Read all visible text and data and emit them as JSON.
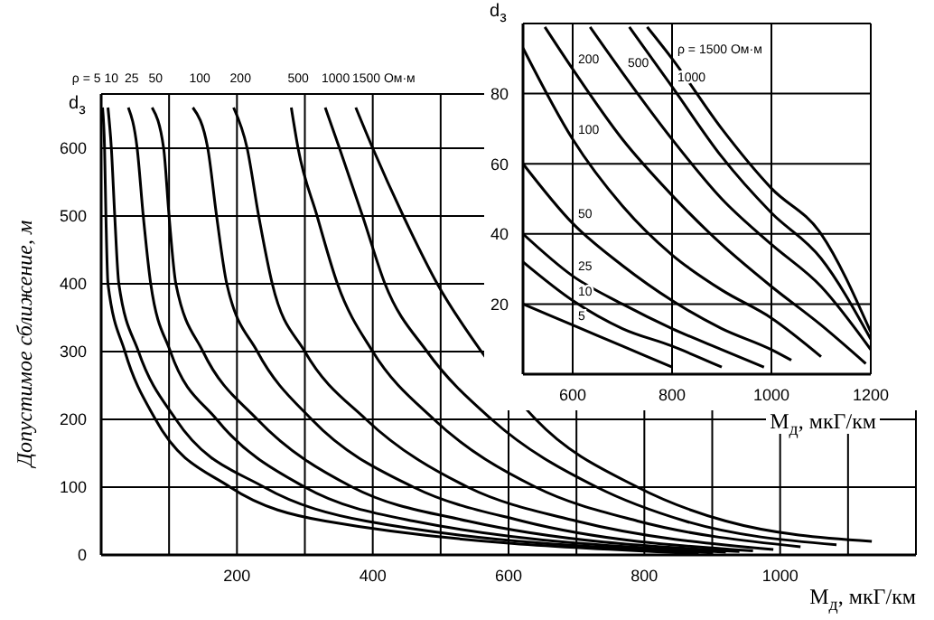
{
  "chart_data": [
    {
      "type": "line",
      "ylabel": "Допустимое сближение, м",
      "xlabel": "M$_{д}$, мкГ/км",
      "annotations": [
        "d$_{з}$"
      ],
      "xlim": [
        0,
        1200
      ],
      "ylim": [
        0,
        680
      ],
      "xticks": [
        {
          "value": 0,
          "label": null
        },
        {
          "value": 100,
          "label": null
        },
        200,
        {
          "value": 300,
          "label": null
        },
        400,
        {
          "value": 500,
          "label": null
        },
        600,
        {
          "value": 700,
          "label": null
        },
        800,
        {
          "value": 900,
          "label": null
        },
        1000,
        {
          "value": 1100,
          "label": null
        }
      ],
      "yticks": [
        0,
        100,
        200,
        300,
        400,
        500,
        600
      ],
      "grid": true,
      "marker": "none",
      "line_style": "solid",
      "series": [
        {
          "name": "ρ = 5",
          "color": "#000000",
          "x": [
            2,
            5,
            7,
            10,
            35,
            80,
            190,
            330,
            880
          ],
          "values": [
            660,
            600,
            500,
            400,
            300,
            200,
            100,
            50,
            2
          ]
        },
        {
          "name": "10",
          "color": "#000000",
          "x": [
            10,
            15,
            20,
            26,
            55,
            110,
            240,
            390,
            900
          ],
          "values": [
            660,
            600,
            500,
            400,
            300,
            200,
            100,
            50,
            3
          ]
        },
        {
          "name": "25",
          "color": "#000000",
          "x": [
            40,
            53,
            62,
            73,
            102,
            170,
            300,
            460,
            920
          ],
          "values": [
            660,
            600,
            500,
            400,
            300,
            200,
            100,
            50,
            4
          ]
        },
        {
          "name": "50",
          "color": "#000000",
          "x": [
            75,
            92,
            100,
            110,
            150,
            230,
            370,
            540,
            940
          ],
          "values": [
            660,
            600,
            500,
            400,
            300,
            200,
            100,
            50,
            5
          ]
        },
        {
          "name": "100",
          "color": "#000000",
          "x": [
            135,
            157,
            170,
            185,
            230,
            310,
            460,
            620,
            960
          ],
          "values": [
            660,
            600,
            500,
            400,
            300,
            200,
            100,
            50,
            6
          ]
        },
        {
          "name": "200",
          "color": "#000000",
          "x": [
            195,
            215,
            232,
            252,
            300,
            390,
            540,
            700,
            990
          ],
          "values": [
            660,
            600,
            500,
            400,
            300,
            200,
            100,
            50,
            8
          ]
        },
        {
          "name": "500",
          "color": "#000000",
          "x": [
            280,
            290,
            318,
            348,
            400,
            490,
            640,
            790,
            1030
          ],
          "values": [
            660,
            600,
            500,
            400,
            300,
            200,
            100,
            50,
            12
          ]
        },
        {
          "name": "1000",
          "color": "#000000",
          "x": [
            330,
            351,
            385,
            418,
            480,
            575,
            730,
            860,
            1083
          ],
          "values": [
            660,
            600,
            500,
            400,
            300,
            200,
            100,
            50,
            15
          ]
        },
        {
          "name": "1500 Ом·м",
          "color": "#000000",
          "x": [
            375,
            400,
            445,
            495,
            560,
            640,
            790,
            920,
            1135
          ],
          "values": [
            660,
            600,
            500,
            400,
            300,
            200,
            100,
            50,
            20
          ]
        }
      ]
    },
    {
      "type": "line",
      "ylabel": "d$_{з}$",
      "xlabel": "M$_{д}$, мкГ/км",
      "xlim": [
        500,
        1200
      ],
      "ylim": [
        0,
        100
      ],
      "xticks": [
        600,
        800,
        1000,
        1200
      ],
      "yticks": [
        20,
        40,
        60,
        80
      ],
      "grid": true,
      "marker": "none",
      "line_style": "solid",
      "series": [
        {
          "name": "5",
          "color": "#000000",
          "x": [
            500,
            600,
            700,
            800
          ],
          "values": [
            20,
            14,
            8,
            2
          ]
        },
        {
          "name": "10",
          "color": "#000000",
          "x": [
            500,
            600,
            700,
            800,
            900
          ],
          "values": [
            32,
            21,
            13,
            8,
            2
          ]
        },
        {
          "name": "25",
          "color": "#000000",
          "x": [
            500,
            600,
            700,
            800,
            900,
            985
          ],
          "values": [
            40,
            28,
            20,
            13,
            7,
            2
          ]
        },
        {
          "name": "50",
          "color": "#000000",
          "x": [
            500,
            600,
            700,
            800,
            900,
            1000,
            1040
          ],
          "values": [
            60,
            43,
            31,
            21,
            13,
            7,
            4
          ]
        },
        {
          "name": "100",
          "color": "#000000",
          "x": [
            500,
            600,
            700,
            800,
            900,
            1000,
            1100
          ],
          "values": [
            93,
            67,
            48,
            34,
            24,
            16,
            5
          ]
        },
        {
          "name": "200",
          "color": "#000000",
          "x": [
            544,
            600,
            700,
            800,
            900,
            1000,
            1100,
            1190
          ],
          "values": [
            99,
            87,
            67,
            51,
            37,
            25,
            14,
            3
          ]
        },
        {
          "name": "500",
          "color": "#000000",
          "x": [
            635,
            700,
            800,
            900,
            1000,
            1100,
            1200
          ],
          "values": [
            99,
            86,
            67,
            50,
            37,
            25,
            7
          ]
        },
        {
          "name": "1000",
          "color": "#000000",
          "x": [
            714,
            800,
            900,
            1000,
            1100,
            1200
          ],
          "values": [
            99,
            82,
            62,
            46,
            33,
            10
          ]
        },
        {
          "name": "ρ = 1500 Ом·м",
          "color": "#000000",
          "x": [
            750,
            800,
            900,
            1000,
            1100,
            1200
          ],
          "values": [
            99,
            90,
            70,
            53,
            40,
            12
          ]
        }
      ]
    }
  ]
}
